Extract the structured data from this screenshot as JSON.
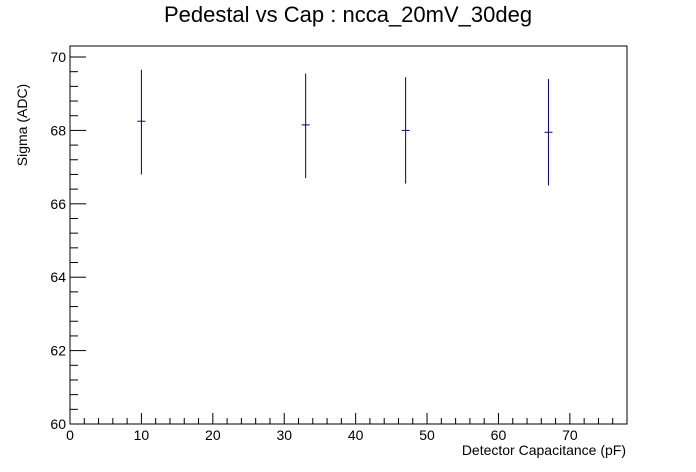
{
  "chart_data": {
    "type": "scatter",
    "title": "Pedestal vs Cap : ncca_20mV_30deg",
    "xlabel": "Detector Capacitance (pF)",
    "ylabel": "Sigma (ADC)",
    "xlim": [
      0,
      78
    ],
    "ylim": [
      60,
      70.3
    ],
    "x_ticks": [
      0,
      10,
      20,
      30,
      40,
      50,
      60,
      70
    ],
    "y_ticks": [
      60,
      62,
      64,
      66,
      68,
      70
    ],
    "grid": false,
    "points": [
      {
        "x": 10,
        "y": 68.25,
        "yerr_low": 66.8,
        "yerr_high": 69.65
      },
      {
        "x": 33,
        "y": 68.15,
        "yerr_low": 66.7,
        "yerr_high": 69.55
      },
      {
        "x": 47,
        "y": 68.0,
        "yerr_low": 66.55,
        "yerr_high": 69.45
      },
      {
        "x": 67,
        "y": 67.95,
        "yerr_low": 66.5,
        "yerr_high": 69.4
      }
    ],
    "marker_color": "#00007f"
  }
}
